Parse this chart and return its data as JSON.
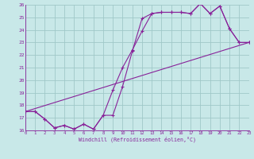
{
  "bg_color": "#c8e8e8",
  "grid_color": "#a0c8c8",
  "line_color": "#882299",
  "xlim": [
    0,
    23
  ],
  "ylim": [
    16,
    26
  ],
  "xticks": [
    0,
    1,
    2,
    3,
    4,
    5,
    6,
    7,
    8,
    9,
    10,
    11,
    12,
    13,
    14,
    15,
    16,
    17,
    18,
    19,
    20,
    21,
    22,
    23
  ],
  "yticks": [
    16,
    17,
    18,
    19,
    20,
    21,
    22,
    23,
    24,
    25,
    26
  ],
  "xlabel": "Windchill (Refroidissement éolien,°C)",
  "line1_x": [
    0,
    1,
    2,
    3,
    4,
    5,
    6,
    7,
    8,
    9,
    10,
    11,
    12,
    13,
    14,
    15,
    16,
    17,
    18,
    19,
    20,
    21,
    22,
    23
  ],
  "line1_y": [
    17.5,
    17.5,
    16.9,
    16.2,
    16.4,
    16.1,
    16.5,
    16.1,
    17.2,
    17.2,
    19.5,
    22.3,
    24.9,
    25.3,
    25.4,
    25.4,
    25.4,
    25.3,
    26.1,
    25.3,
    25.9,
    24.1,
    23.0,
    23.0
  ],
  "line2_x": [
    0,
    1,
    2,
    3,
    4,
    5,
    6,
    7,
    8,
    9,
    10,
    11,
    12,
    13,
    14,
    15,
    16,
    17,
    18,
    19,
    20,
    21,
    22,
    23
  ],
  "line2_y": [
    17.5,
    17.5,
    16.9,
    16.2,
    16.4,
    16.1,
    16.5,
    16.1,
    17.2,
    19.2,
    21.0,
    22.4,
    23.9,
    25.3,
    25.4,
    25.4,
    25.4,
    25.3,
    26.1,
    25.3,
    25.9,
    24.1,
    23.0,
    23.0
  ],
  "line3_x": [
    0,
    23
  ],
  "line3_y": [
    17.5,
    23.0
  ]
}
